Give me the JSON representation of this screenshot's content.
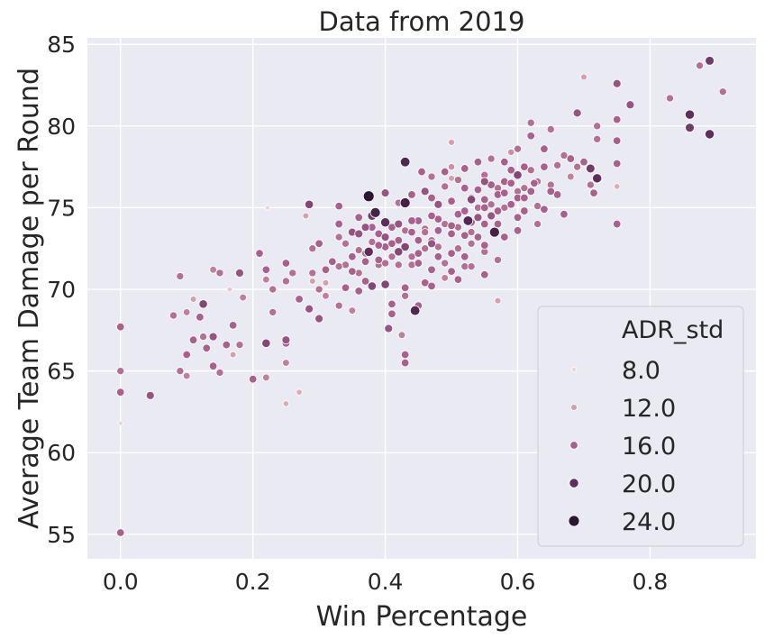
{
  "chart_data": {
    "type": "scatter",
    "title": "Data from 2019",
    "xlabel": "Win Percentage",
    "ylabel": "Average Team Damage per Round",
    "xlim": [
      -0.05,
      0.96
    ],
    "ylim": [
      53.5,
      85.4
    ],
    "xticks": [
      0.0,
      0.2,
      0.4,
      0.6,
      0.8
    ],
    "yticks": [
      55,
      60,
      65,
      70,
      75,
      80,
      85
    ],
    "grid": true,
    "legend": {
      "title": "ADR_std",
      "position": "lower-right",
      "entries": [
        {
          "label": "8.0",
          "color": "#f0d3cb"
        },
        {
          "label": "12.0",
          "color": "#d5a0a9"
        },
        {
          "label": "16.0",
          "color": "#a8608e"
        },
        {
          "label": "20.0",
          "color": "#5e2e5d"
        },
        {
          "label": "24.0",
          "color": "#2b1633"
        }
      ]
    },
    "hue_range": [
      6,
      26
    ],
    "colors": {
      "background": "#eaeaf2",
      "grid": "#ffffff",
      "text": "#262626",
      "marker_edge": "#ffffff"
    },
    "points": [
      [
        0.0,
        55.1,
        16
      ],
      [
        0.0,
        61.8,
        8
      ],
      [
        0.0,
        63.7,
        16
      ],
      [
        0.0,
        65.0,
        15
      ],
      [
        0.0,
        67.7,
        16
      ],
      [
        0.045,
        63.5,
        17
      ],
      [
        0.08,
        68.4,
        15
      ],
      [
        0.09,
        70.8,
        15
      ],
      [
        0.09,
        65.0,
        15
      ],
      [
        0.1,
        66.0,
        16
      ],
      [
        0.1,
        64.7,
        14
      ],
      [
        0.1,
        68.6,
        14
      ],
      [
        0.11,
        69.4,
        12
      ],
      [
        0.11,
        66.9,
        16
      ],
      [
        0.12,
        68.3,
        16
      ],
      [
        0.125,
        69.1,
        18
      ],
      [
        0.125,
        67.1,
        15
      ],
      [
        0.13,
        66.4,
        16
      ],
      [
        0.14,
        65.3,
        16
      ],
      [
        0.14,
        67.1,
        17
      ],
      [
        0.14,
        71.2,
        14
      ],
      [
        0.15,
        71.0,
        15
      ],
      [
        0.15,
        64.9,
        15
      ],
      [
        0.16,
        66.6,
        16
      ],
      [
        0.165,
        70.0,
        9
      ],
      [
        0.17,
        67.8,
        16
      ],
      [
        0.17,
        66.0,
        12
      ],
      [
        0.18,
        66.6,
        15
      ],
      [
        0.18,
        71.0,
        17
      ],
      [
        0.185,
        69.5,
        14
      ],
      [
        0.2,
        64.5,
        16
      ],
      [
        0.21,
        72.2,
        16
      ],
      [
        0.22,
        66.7,
        18
      ],
      [
        0.22,
        64.6,
        14
      ],
      [
        0.22,
        70.6,
        14
      ],
      [
        0.22,
        71.2,
        16
      ],
      [
        0.222,
        75.0,
        8
      ],
      [
        0.23,
        68.6,
        15
      ],
      [
        0.25,
        70.5,
        15
      ],
      [
        0.25,
        71.6,
        16
      ],
      [
        0.25,
        66.9,
        17
      ],
      [
        0.25,
        66.7,
        16
      ],
      [
        0.25,
        65.5,
        14
      ],
      [
        0.25,
        63.0,
        11
      ],
      [
        0.27,
        63.7,
        11
      ],
      [
        0.28,
        74.5,
        12
      ],
      [
        0.285,
        75.2,
        18
      ],
      [
        0.285,
        68.8,
        17
      ],
      [
        0.29,
        71.0,
        15
      ],
      [
        0.29,
        72.5,
        15
      ],
      [
        0.29,
        70.5,
        12
      ],
      [
        0.3,
        68.2,
        17
      ],
      [
        0.3,
        72.8,
        16
      ],
      [
        0.31,
        70.4,
        12
      ],
      [
        0.31,
        69.6,
        14
      ],
      [
        0.32,
        71.7,
        16
      ],
      [
        0.33,
        69.0,
        15
      ],
      [
        0.33,
        73.2,
        15
      ],
      [
        0.33,
        74.0,
        16
      ],
      [
        0.33,
        75.1,
        16
      ],
      [
        0.34,
        70.1,
        16
      ],
      [
        0.34,
        72.8,
        15
      ],
      [
        0.35,
        68.7,
        14
      ],
      [
        0.35,
        73.5,
        17
      ],
      [
        0.35,
        71.1,
        16
      ],
      [
        0.36,
        72.4,
        15
      ],
      [
        0.36,
        74.4,
        16
      ],
      [
        0.36,
        69.9,
        16
      ],
      [
        0.37,
        73.8,
        17
      ],
      [
        0.37,
        71.7,
        16
      ],
      [
        0.375,
        75.7,
        24
      ],
      [
        0.375,
        72.3,
        20
      ],
      [
        0.38,
        70.2,
        18
      ],
      [
        0.38,
        74.5,
        19
      ],
      [
        0.385,
        74.7,
        22
      ],
      [
        0.39,
        73.4,
        16
      ],
      [
        0.39,
        71.5,
        15
      ],
      [
        0.4,
        74.1,
        20
      ],
      [
        0.4,
        72.6,
        16
      ],
      [
        0.4,
        70.3,
        18
      ],
      [
        0.4,
        75.9,
        17
      ],
      [
        0.405,
        67.6,
        17
      ],
      [
        0.41,
        73.8,
        16
      ],
      [
        0.41,
        69.1,
        16
      ],
      [
        0.42,
        71.5,
        15
      ],
      [
        0.42,
        74.0,
        17
      ],
      [
        0.42,
        75.3,
        15
      ],
      [
        0.425,
        67.2,
        14
      ],
      [
        0.43,
        77.8,
        21
      ],
      [
        0.43,
        75.3,
        22
      ],
      [
        0.43,
        72.6,
        18
      ],
      [
        0.43,
        70.1,
        16
      ],
      [
        0.43,
        66.0,
        16
      ],
      [
        0.43,
        65.5,
        16
      ],
      [
        0.44,
        73.5,
        16
      ],
      [
        0.44,
        71.5,
        15
      ],
      [
        0.445,
        68.7,
        21
      ],
      [
        0.45,
        74.2,
        16
      ],
      [
        0.45,
        72.2,
        16
      ],
      [
        0.455,
        77.2,
        16
      ],
      [
        0.46,
        73.7,
        15
      ],
      [
        0.46,
        70.4,
        16
      ],
      [
        0.47,
        75.6,
        16
      ],
      [
        0.47,
        73.0,
        15
      ],
      [
        0.47,
        71.2,
        16
      ],
      [
        0.48,
        72.6,
        15
      ],
      [
        0.48,
        74.3,
        16
      ],
      [
        0.49,
        70.7,
        14
      ],
      [
        0.49,
        76.3,
        15
      ],
      [
        0.5,
        75.4,
        16
      ],
      [
        0.5,
        73.4,
        16
      ],
      [
        0.5,
        71.1,
        16
      ],
      [
        0.5,
        79.0,
        12
      ],
      [
        0.5,
        77.5,
        13
      ],
      [
        0.51,
        74.6,
        16
      ],
      [
        0.51,
        72.5,
        15
      ],
      [
        0.52,
        76.2,
        16
      ],
      [
        0.52,
        73.3,
        16
      ],
      [
        0.52,
        71.4,
        15
      ],
      [
        0.525,
        74.2,
        21
      ],
      [
        0.53,
        75.6,
        16
      ],
      [
        0.53,
        72.8,
        15
      ],
      [
        0.54,
        74.4,
        17
      ],
      [
        0.54,
        76.1,
        16
      ],
      [
        0.54,
        73.2,
        16
      ],
      [
        0.55,
        77.0,
        15
      ],
      [
        0.55,
        75.5,
        16
      ],
      [
        0.55,
        72.3,
        15
      ],
      [
        0.55,
        70.9,
        16
      ],
      [
        0.56,
        74.5,
        17
      ],
      [
        0.56,
        76.4,
        16
      ],
      [
        0.565,
        73.5,
        22
      ],
      [
        0.57,
        75.8,
        16
      ],
      [
        0.57,
        74.0,
        16
      ],
      [
        0.57,
        69.3,
        12
      ],
      [
        0.58,
        76.6,
        16
      ],
      [
        0.58,
        75.0,
        15
      ],
      [
        0.58,
        73.2,
        16
      ],
      [
        0.59,
        78.4,
        13
      ],
      [
        0.59,
        77.3,
        16
      ],
      [
        0.6,
        75.6,
        16
      ],
      [
        0.6,
        74.4,
        16
      ],
      [
        0.6,
        77.0,
        18
      ],
      [
        0.61,
        76.2,
        15
      ],
      [
        0.61,
        74.8,
        16
      ],
      [
        0.62,
        79.4,
        16
      ],
      [
        0.62,
        80.2,
        15
      ],
      [
        0.625,
        76.5,
        16
      ],
      [
        0.63,
        75.1,
        15
      ],
      [
        0.64,
        77.5,
        16
      ],
      [
        0.64,
        74.9,
        16
      ],
      [
        0.65,
        76.4,
        15
      ],
      [
        0.65,
        79.8,
        15
      ],
      [
        0.66,
        75.8,
        16
      ],
      [
        0.67,
        78.2,
        15
      ],
      [
        0.67,
        74.6,
        16
      ],
      [
        0.68,
        76.9,
        14
      ],
      [
        0.69,
        77.5,
        15
      ],
      [
        0.69,
        80.8,
        17
      ],
      [
        0.7,
        83.0,
        12
      ],
      [
        0.7,
        77.8,
        16
      ],
      [
        0.71,
        76.4,
        15
      ],
      [
        0.71,
        77.4,
        19
      ],
      [
        0.715,
        75.9,
        16
      ],
      [
        0.72,
        79.2,
        15
      ],
      [
        0.72,
        80.0,
        15
      ],
      [
        0.72,
        76.8,
        20
      ],
      [
        0.75,
        82.6,
        17
      ],
      [
        0.75,
        79.1,
        16
      ],
      [
        0.75,
        80.4,
        16
      ],
      [
        0.75,
        77.7,
        16
      ],
      [
        0.75,
        74.0,
        16
      ],
      [
        0.75,
        76.3,
        11
      ],
      [
        0.77,
        81.3,
        17
      ],
      [
        0.83,
        81.7,
        15
      ],
      [
        0.86,
        80.7,
        20
      ],
      [
        0.86,
        79.9,
        19
      ],
      [
        0.875,
        83.7,
        15
      ],
      [
        0.89,
        84.0,
        19
      ],
      [
        0.89,
        79.5,
        20
      ],
      [
        0.91,
        82.1,
        15
      ],
      [
        0.36,
        71.0,
        15
      ],
      [
        0.37,
        70.5,
        16
      ],
      [
        0.38,
        72.9,
        15
      ],
      [
        0.39,
        71.8,
        16
      ],
      [
        0.41,
        72.0,
        15
      ],
      [
        0.42,
        73.0,
        16
      ],
      [
        0.44,
        72.0,
        15
      ],
      [
        0.45,
        73.0,
        16
      ],
      [
        0.46,
        72.5,
        15
      ],
      [
        0.47,
        74.5,
        16
      ],
      [
        0.48,
        73.6,
        16
      ],
      [
        0.49,
        74.0,
        15
      ],
      [
        0.5,
        72.2,
        16
      ],
      [
        0.51,
        73.8,
        15
      ],
      [
        0.52,
        74.8,
        16
      ],
      [
        0.53,
        74.1,
        16
      ],
      [
        0.54,
        75.0,
        15
      ],
      [
        0.55,
        74.0,
        16
      ],
      [
        0.56,
        75.2,
        15
      ],
      [
        0.57,
        74.8,
        16
      ],
      [
        0.58,
        75.9,
        16
      ],
      [
        0.59,
        75.2,
        16
      ],
      [
        0.6,
        76.0,
        15
      ],
      [
        0.61,
        75.6,
        16
      ],
      [
        0.62,
        76.0,
        16
      ],
      [
        0.63,
        76.6,
        15
      ],
      [
        0.45,
        71.6,
        16
      ],
      [
        0.46,
        73.5,
        15
      ],
      [
        0.48,
        72.0,
        16
      ],
      [
        0.5,
        73.9,
        16
      ],
      [
        0.52,
        72.0,
        16
      ],
      [
        0.53,
        73.5,
        15
      ],
      [
        0.55,
        75.0,
        16
      ],
      [
        0.57,
        76.2,
        15
      ],
      [
        0.59,
        76.5,
        16
      ],
      [
        0.44,
        74.2,
        16
      ],
      [
        0.43,
        73.6,
        15
      ],
      [
        0.41,
        72.8,
        16
      ],
      [
        0.4,
        71.6,
        15
      ],
      [
        0.39,
        72.7,
        16
      ],
      [
        0.38,
        73.8,
        16
      ],
      [
        0.37,
        72.2,
        15
      ],
      [
        0.35,
        72.0,
        16
      ],
      [
        0.34,
        71.5,
        15
      ],
      [
        0.47,
        76.9,
        15
      ],
      [
        0.49,
        77.2,
        16
      ],
      [
        0.51,
        76.7,
        15
      ],
      [
        0.54,
        77.8,
        16
      ],
      [
        0.56,
        78.0,
        15
      ],
      [
        0.62,
        77.3,
        15
      ],
      [
        0.64,
        78.6,
        16
      ],
      [
        0.66,
        77.6,
        15
      ],
      [
        0.68,
        78.0,
        16
      ],
      [
        0.41,
        68.5,
        16
      ],
      [
        0.43,
        69.6,
        15
      ],
      [
        0.45,
        69.0,
        16
      ],
      [
        0.47,
        70.2,
        16
      ],
      [
        0.49,
        71.6,
        15
      ],
      [
        0.51,
        70.6,
        16
      ],
      [
        0.53,
        71.4,
        15
      ],
      [
        0.55,
        72.7,
        16
      ],
      [
        0.57,
        71.8,
        15
      ],
      [
        0.6,
        73.6,
        16
      ],
      [
        0.63,
        74.0,
        15
      ],
      [
        0.5,
        76.8,
        12
      ],
      [
        0.46,
        76.0,
        17
      ],
      [
        0.44,
        75.8,
        16
      ],
      [
        0.48,
        75.2,
        17
      ],
      [
        0.52,
        77.4,
        16
      ],
      [
        0.58,
        77.8,
        16
      ],
      [
        0.6,
        78.6,
        15
      ],
      [
        0.4,
        73.2,
        17
      ],
      [
        0.42,
        72.3,
        18
      ],
      [
        0.36,
        73.4,
        17
      ],
      [
        0.33,
        71.4,
        15
      ],
      [
        0.31,
        71.2,
        16
      ],
      [
        0.3,
        70.0,
        15
      ],
      [
        0.27,
        69.4,
        16
      ],
      [
        0.26,
        71.0,
        15
      ],
      [
        0.23,
        70.0,
        15
      ],
      [
        0.47,
        72.8,
        17
      ],
      [
        0.53,
        75.5,
        18
      ],
      [
        0.55,
        76.6,
        17
      ],
      [
        0.61,
        77.5,
        16
      ],
      [
        0.65,
        76.0,
        16
      ]
    ]
  }
}
